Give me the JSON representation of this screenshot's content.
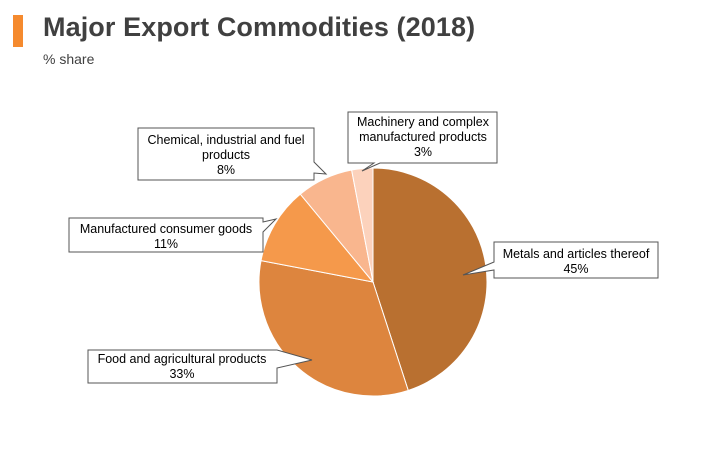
{
  "header": {
    "title": "Major Export Commodities (2018)",
    "subtitle": "% share"
  },
  "colors": {
    "accent": "#f58a2e",
    "label_border": "#555555"
  },
  "chart_data": {
    "type": "pie",
    "title": "Major Export Commodities (2018)",
    "subtitle": "% share",
    "start_angle_deg": 0,
    "direction": "clockwise",
    "legend": "none",
    "slices": [
      {
        "label": "Metals and articles thereof",
        "value": 45,
        "value_label": "45%",
        "color": "#b97030"
      },
      {
        "label": "Food and agricultural products",
        "value": 33,
        "value_label": "33%",
        "color": "#dd853e"
      },
      {
        "label": "Manufactured consumer goods",
        "value": 11,
        "value_label": "11%",
        "color": "#f5994b"
      },
      {
        "label": "Chemical, industrial and fuel products",
        "value": 8,
        "value_label": "8%",
        "color": "#f9b68e"
      },
      {
        "label": "Machinery and complex manufactured products",
        "value": 3,
        "value_label": "3%",
        "color": "#fcd2bc"
      }
    ]
  }
}
